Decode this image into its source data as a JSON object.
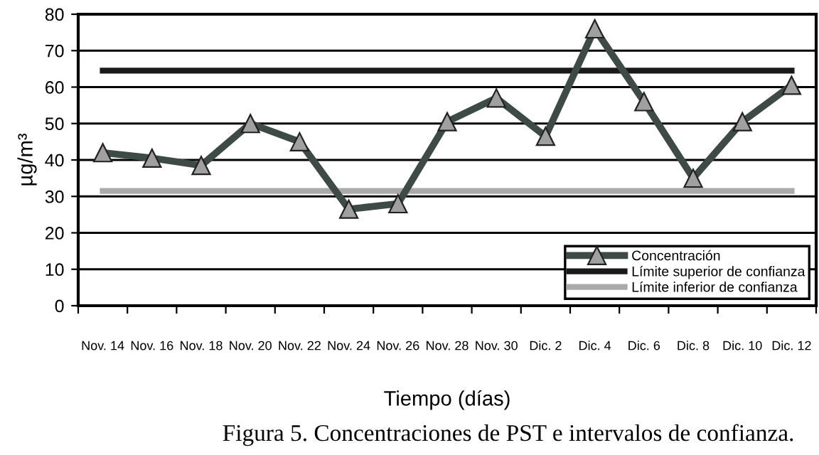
{
  "chart_data": {
    "type": "line",
    "xlabel": "Tiempo (días)",
    "ylabel": "µg/m³",
    "categories": [
      "Nov. 14",
      "Nov. 16",
      "Nov. 18",
      "Nov. 20",
      "Nov. 22",
      "Nov. 24",
      "Nov. 26",
      "Nov. 28",
      "Nov. 30",
      "Dic. 2",
      "Dic. 4",
      "Dic. 6",
      "Dic. 8",
      "Dic. 10",
      "Dic. 12"
    ],
    "series": [
      {
        "name": "Concentración",
        "color": "#3d4a45",
        "marker": "triangle",
        "values": [
          42,
          40.5,
          38.5,
          50,
          45,
          26.5,
          28,
          50.5,
          57,
          46.5,
          76,
          56,
          35,
          50.5,
          60.5
        ]
      },
      {
        "name": "Límite superior de confianza",
        "color": "#1a1a1a",
        "marker": "none",
        "values": [
          64.5,
          64.5,
          64.5,
          64.5,
          64.5,
          64.5,
          64.5,
          64.5,
          64.5,
          64.5,
          64.5,
          64.5,
          64.5,
          64.5,
          64.5
        ]
      },
      {
        "name": "Límite inferior de confianza",
        "color": "#aaaaaa",
        "marker": "none",
        "values": [
          31.5,
          31.5,
          31.5,
          31.5,
          31.5,
          31.5,
          31.5,
          31.5,
          31.5,
          31.5,
          31.5,
          31.5,
          31.5,
          31.5,
          31.5
        ]
      }
    ],
    "ylim": [
      0,
      80
    ],
    "yticks": [
      0,
      10,
      20,
      30,
      40,
      50,
      60,
      70,
      80
    ],
    "grid": "y",
    "legend": "bottom right",
    "line_style": "solid",
    "annotations": [
      "Figura 5. Concentraciones de PST e intervalos de confianza."
    ]
  }
}
